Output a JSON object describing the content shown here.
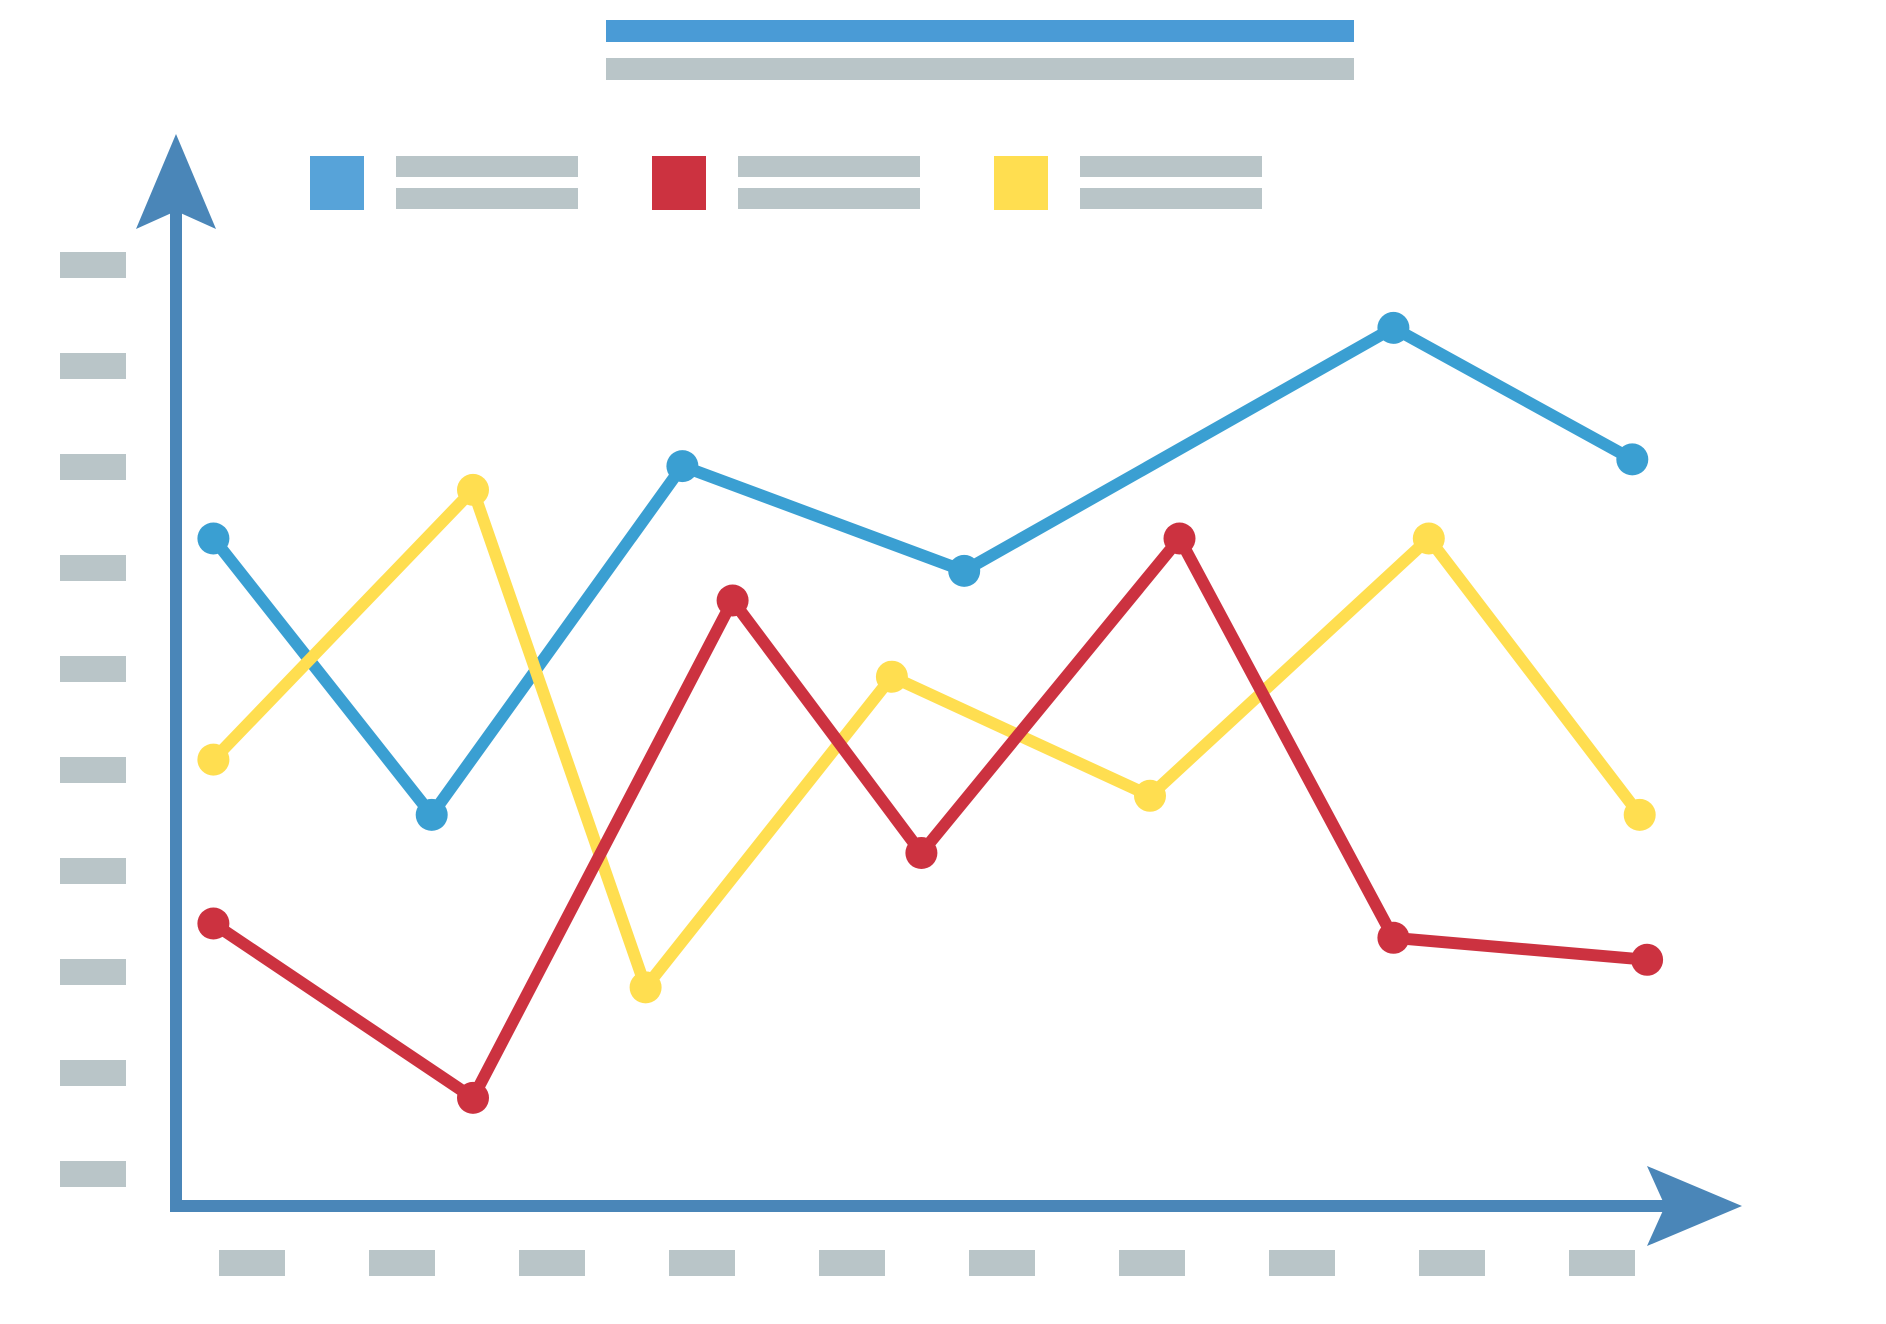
{
  "colors": {
    "axis": "#4a86b8",
    "placeholder_bar": "#b9c5c8",
    "title_bar": "#4a9bd6",
    "series_blue": "#3a9fd2",
    "series_red": "#cc3240",
    "series_yellow": "#ffde50",
    "legend_blue": "#57a3d9"
  },
  "chart_data": {
    "type": "line",
    "title": "",
    "xlabel": "",
    "ylabel": "",
    "ylim": [
      0,
      100
    ],
    "grid": false,
    "legend_position": "top",
    "y_ticks": 10,
    "x_ticks": 10,
    "series": [
      {
        "color_key": "series_blue",
        "x": [
          0.24,
          1.72,
          3.42,
          5.33,
          8.24,
          9.86
        ],
        "y": [
          69.2,
          40.2,
          76.8,
          65.8,
          91.3,
          77.5
        ]
      },
      {
        "color_key": "series_yellow",
        "x": [
          0.24,
          2.0,
          3.17,
          4.84,
          6.59,
          8.48,
          9.91
        ],
        "y": [
          46.0,
          74.3,
          22.1,
          54.7,
          42.2,
          69.2,
          40.2
        ]
      },
      {
        "color_key": "series_red",
        "x": [
          0.24,
          2.0,
          3.76,
          5.04,
          6.79,
          8.24,
          9.96
        ],
        "y": [
          28.8,
          10.5,
          62.7,
          36.2,
          69.2,
          27.3,
          25.0
        ]
      }
    ],
    "legend": [
      {
        "color_key": "legend_blue"
      },
      {
        "color_key": "series_red"
      },
      {
        "color_key": "series_yellow"
      }
    ]
  }
}
